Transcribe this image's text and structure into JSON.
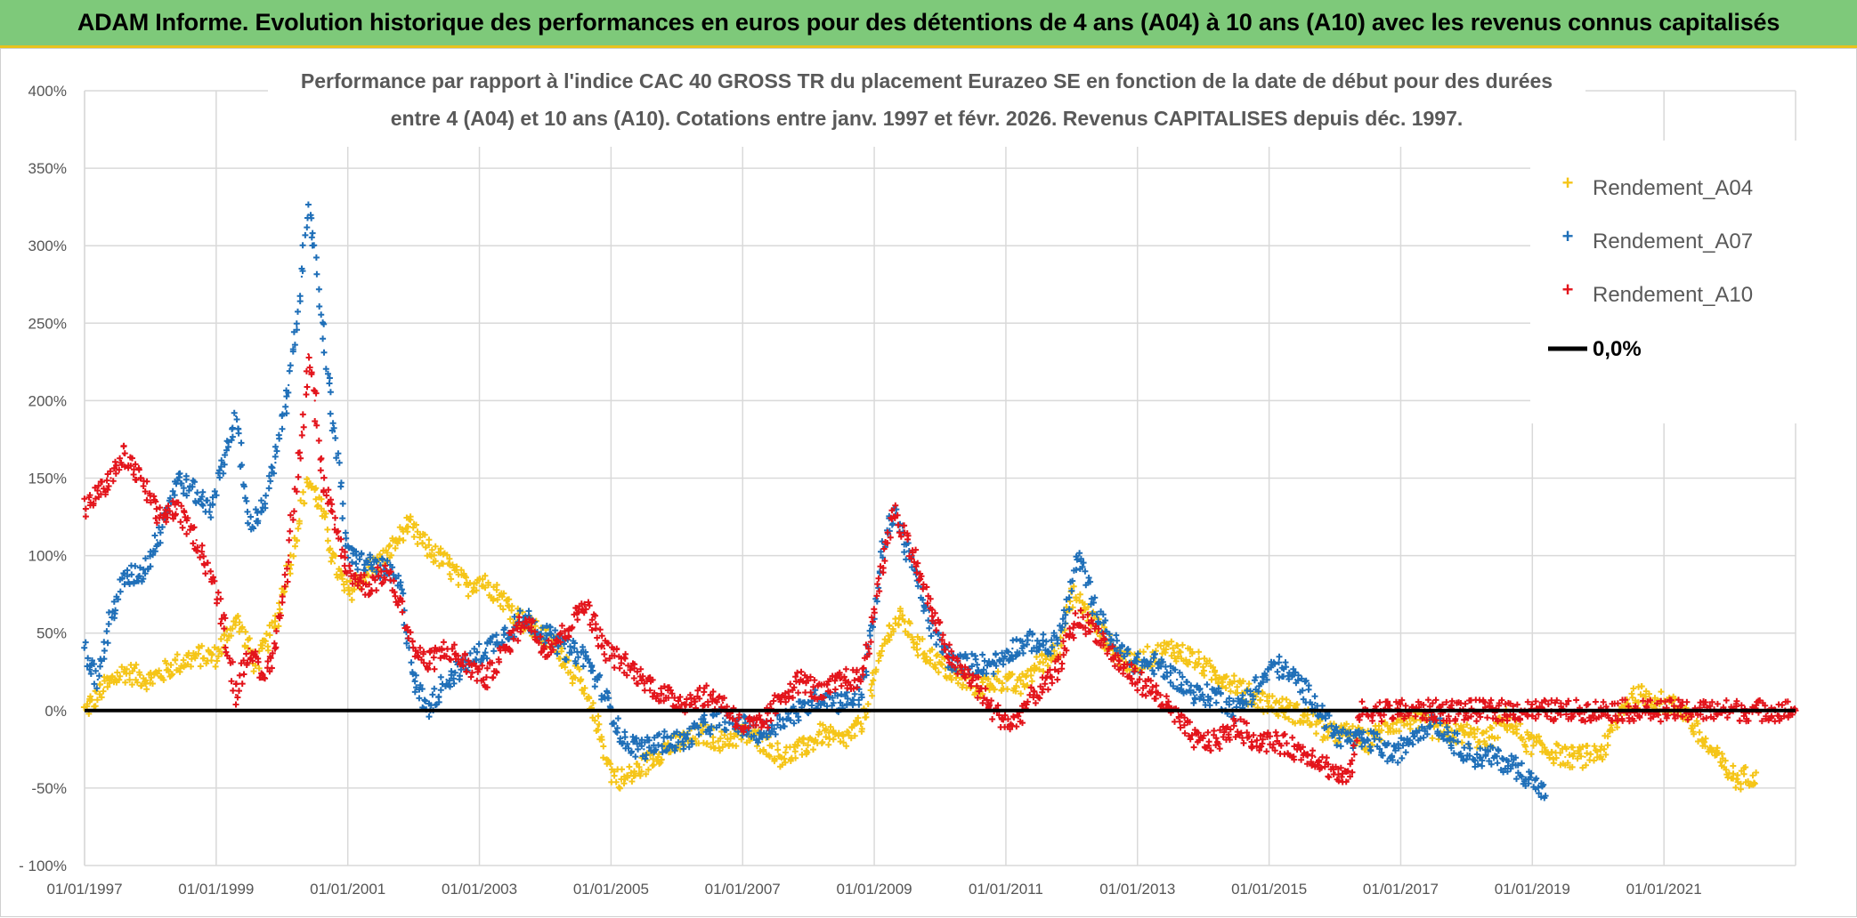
{
  "banner": {
    "title": "ADAM Informe. Evolution historique des performances en euros pour des détentions de 4 ans (A04) à 10 ans (A10) avec les revenus connus capitalisés"
  },
  "chart_data": {
    "type": "scatter",
    "title_line1": "Performance par rapport à l'indice CAC 40 GROSS TR  du placement Eurazeo SE en fonction de la date de début pour des durées",
    "title_line2": "entre 4 (A04) et 10 ans (A10). Cotations entre janv. 1997 et févr. 2026. Revenus CAPITALISES depuis déc. 1997.",
    "xlim": [
      1997.0,
      2023.0
    ],
    "ylim": [
      -100,
      400
    ],
    "x_ticks": [
      {
        "value": 1997,
        "label": "01/01/1997"
      },
      {
        "value": 1999,
        "label": "01/01/1999"
      },
      {
        "value": 2001,
        "label": "01/01/2001"
      },
      {
        "value": 2003,
        "label": "01/01/2003"
      },
      {
        "value": 2005,
        "label": "01/01/2005"
      },
      {
        "value": 2007,
        "label": "01/01/2007"
      },
      {
        "value": 2009,
        "label": "01/01/2009"
      },
      {
        "value": 2011,
        "label": "01/01/2011"
      },
      {
        "value": 2013,
        "label": "01/01/2013"
      },
      {
        "value": 2015,
        "label": "01/01/2015"
      },
      {
        "value": 2017,
        "label": "01/01/2017"
      },
      {
        "value": 2019,
        "label": "01/01/2019"
      },
      {
        "value": 2021,
        "label": "01/01/2021"
      }
    ],
    "y_ticks": [
      {
        "value": 400,
        "label": "400%"
      },
      {
        "value": 350,
        "label": "350%"
      },
      {
        "value": 300,
        "label": "300%"
      },
      {
        "value": 250,
        "label": "250%"
      },
      {
        "value": 200,
        "label": "200%"
      },
      {
        "value": 150,
        "label": "150%"
      },
      {
        "value": 100,
        "label": "100%"
      },
      {
        "value": 50,
        "label": "50%"
      },
      {
        "value": 0,
        "label": "0%"
      },
      {
        "value": -50,
        "label": "-50%"
      },
      {
        "value": -100,
        "label": "- 100%"
      }
    ],
    "reference_line": {
      "name": "0,0%",
      "value": 0,
      "color": "#000000"
    },
    "series": [
      {
        "name": "Rendement_A04",
        "color": "#f5c518",
        "x": [
          1997.0,
          1997.3,
          1997.6,
          1998.0,
          1998.4,
          1998.7,
          1999.0,
          1999.3,
          1999.6,
          1999.9,
          2000.2,
          2000.4,
          2000.6,
          2000.8,
          2001.0,
          2001.3,
          2001.6,
          2001.9,
          2002.2,
          2002.5,
          2002.8,
          2003.0,
          2003.3,
          2003.6,
          2003.9,
          2004.2,
          2004.5,
          2004.8,
          2005.0,
          2005.2,
          2005.5,
          2005.8,
          2006.1,
          2006.4,
          2006.7,
          2007.0,
          2007.3,
          2007.6,
          2007.9,
          2008.2,
          2008.5,
          2008.8,
          2009.0,
          2009.2,
          2009.4,
          2009.7,
          2010.0,
          2010.3,
          2010.6,
          2010.9,
          2011.2,
          2011.5,
          2011.8,
          2012.0,
          2012.3,
          2012.6,
          2012.9,
          2013.2,
          2013.5,
          2013.8,
          2014.1,
          2014.4,
          2014.7,
          2015.0,
          2015.3,
          2015.6,
          2015.9,
          2016.2,
          2016.5,
          2016.8,
          2017.1,
          2017.4,
          2017.7,
          2018.0,
          2018.3,
          2018.6,
          2018.9,
          2019.2,
          2019.5,
          2019.8,
          2020.1,
          2020.4,
          2020.7,
          2021.0,
          2021.3,
          2021.6,
          2021.8,
          2022.1,
          2022.4
        ],
        "y": [
          0,
          15,
          25,
          20,
          30,
          35,
          35,
          60,
          30,
          55,
          110,
          150,
          130,
          95,
          75,
          90,
          100,
          120,
          105,
          95,
          80,
          85,
          75,
          60,
          50,
          40,
          20,
          -10,
          -40,
          -45,
          -35,
          -25,
          -20,
          -15,
          -20,
          -15,
          -20,
          -30,
          -25,
          -15,
          -20,
          -10,
          20,
          50,
          60,
          40,
          30,
          20,
          15,
          20,
          15,
          30,
          40,
          75,
          60,
          40,
          30,
          35,
          40,
          35,
          25,
          20,
          10,
          5,
          0,
          -5,
          -15,
          -15,
          -20,
          -10,
          -5,
          -10,
          -15,
          -15,
          -20,
          -5,
          -20,
          -25,
          -30,
          -30,
          -25,
          5,
          10,
          5,
          0,
          -20,
          -30,
          -45,
          -40
        ]
      },
      {
        "name": "Rendement_A07",
        "color": "#1f6fb8",
        "x": [
          1997.0,
          1997.2,
          1997.4,
          1997.6,
          1997.9,
          1998.1,
          1998.4,
          1998.7,
          1998.9,
          1999.1,
          1999.3,
          1999.5,
          1999.7,
          1999.9,
          2000.1,
          2000.3,
          2000.4,
          2000.5,
          2000.6,
          2000.8,
          2001.0,
          2001.3,
          2001.6,
          2001.8,
          2002.0,
          2002.2,
          2002.5,
          2002.8,
          2003.1,
          2003.4,
          2003.7,
          2004.0,
          2004.3,
          2004.6,
          2004.9,
          2005.2,
          2005.5,
          2005.8,
          2006.1,
          2006.4,
          2006.7,
          2007.0,
          2007.3,
          2007.6,
          2007.9,
          2008.2,
          2008.5,
          2008.8,
          2009.0,
          2009.1,
          2009.3,
          2009.6,
          2009.9,
          2010.2,
          2010.5,
          2010.8,
          2011.1,
          2011.4,
          2011.7,
          2011.9,
          2012.1,
          2012.4,
          2012.7,
          2013.0,
          2013.3,
          2013.6,
          2013.9,
          2014.2,
          2014.5,
          2014.8,
          2015.1,
          2015.4,
          2015.7,
          2016.0,
          2016.3,
          2016.6,
          2016.9,
          2017.2,
          2017.5,
          2017.8,
          2018.1,
          2018.4,
          2018.7,
          2019.0,
          2019.2
        ],
        "y": [
          40,
          20,
          60,
          85,
          90,
          110,
          150,
          140,
          130,
          160,
          190,
          120,
          130,
          160,
          210,
          280,
          320,
          300,
          250,
          180,
          100,
          95,
          90,
          80,
          20,
          0,
          20,
          30,
          40,
          50,
          60,
          50,
          40,
          35,
          10,
          -20,
          -25,
          -20,
          -20,
          -10,
          -5,
          -10,
          -15,
          -5,
          0,
          10,
          5,
          10,
          60,
          100,
          130,
          90,
          50,
          30,
          30,
          30,
          40,
          45,
          40,
          60,
          100,
          60,
          40,
          30,
          30,
          20,
          10,
          10,
          0,
          15,
          30,
          20,
          5,
          -15,
          -20,
          -20,
          -30,
          -15,
          -5,
          -20,
          -30,
          -30,
          -35,
          -45,
          -55
        ]
      },
      {
        "name": "Rendement_A10",
        "color": "#e3141b",
        "x": [
          1997.0,
          1997.2,
          1997.4,
          1997.6,
          1997.9,
          1998.1,
          1998.4,
          1998.7,
          1998.9,
          1999.1,
          1999.3,
          1999.5,
          1999.7,
          1999.9,
          2000.1,
          2000.3,
          2000.4,
          2000.5,
          2000.6,
          2000.8,
          2001.0,
          2001.3,
          2001.6,
          2001.8,
          2002.0,
          2002.2,
          2002.5,
          2002.8,
          2003.1,
          2003.4,
          2003.7,
          2004.0,
          2004.3,
          2004.6,
          2004.9,
          2005.2,
          2005.5,
          2005.8,
          2006.1,
          2006.4,
          2006.7,
          2007.0,
          2007.3,
          2007.6,
          2007.9,
          2008.2,
          2008.5,
          2008.8,
          2009.0,
          2009.1,
          2009.3,
          2009.6,
          2009.9,
          2010.2,
          2010.5,
          2010.8,
          2011.1,
          2011.4,
          2011.7,
          2011.9,
          2012.1,
          2012.4,
          2012.7,
          2013.0,
          2013.3,
          2013.6,
          2013.9,
          2014.2,
          2014.5,
          2014.8,
          2015.1,
          2015.4,
          2015.7,
          2016.0,
          2016.2,
          2016.4,
          2017.0,
          2018.0,
          2019.0,
          2020.0,
          2021.0,
          2022.0,
          2023.0
        ],
        "y": [
          130,
          140,
          150,
          165,
          145,
          125,
          130,
          110,
          90,
          60,
          10,
          40,
          20,
          40,
          100,
          180,
          230,
          200,
          150,
          120,
          90,
          80,
          90,
          70,
          40,
          30,
          40,
          30,
          20,
          40,
          60,
          40,
          50,
          70,
          40,
          30,
          20,
          10,
          5,
          10,
          5,
          -10,
          -10,
          10,
          20,
          10,
          20,
          20,
          60,
          90,
          130,
          100,
          60,
          30,
          20,
          0,
          -10,
          10,
          20,
          40,
          60,
          50,
          30,
          20,
          10,
          -5,
          -20,
          -20,
          -10,
          -20,
          -20,
          -25,
          -30,
          -40,
          -45,
          0,
          0,
          0,
          0,
          0,
          0,
          0,
          0
        ]
      }
    ],
    "legend": [
      {
        "name": "Rendement_A04",
        "color": "#f5c518",
        "marker": "+"
      },
      {
        "name": "Rendement_A07",
        "color": "#1f6fb8",
        "marker": "+"
      },
      {
        "name": "Rendement_A10",
        "color": "#e3141b",
        "marker": "+"
      },
      {
        "name": "0,0%",
        "color": "#000000",
        "marker": "line"
      }
    ]
  }
}
